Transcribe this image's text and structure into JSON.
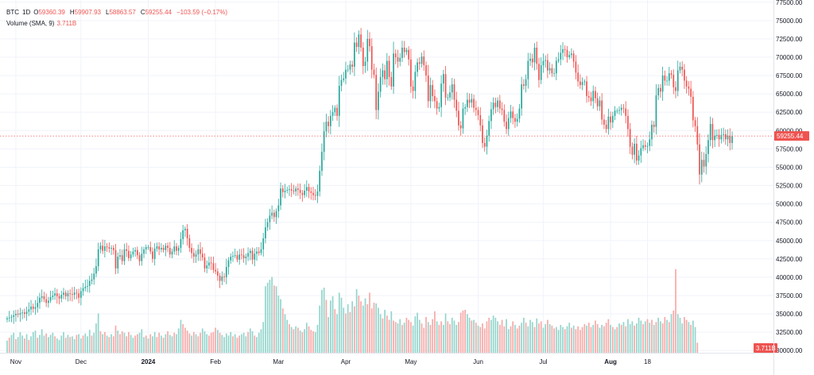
{
  "legend": {
    "symbol": "BTC",
    "interval": "1D",
    "o_label": "O",
    "open": "59360.39",
    "h_label": "H",
    "high": "59907.93",
    "l_label": "L",
    "low": "58863.57",
    "c_label": "C",
    "close": "59255.44",
    "change": "−103.59 (−0.17%)",
    "volume_label": "Volume (SMA, 9)",
    "volume_value": "3.711B"
  },
  "colors": {
    "up": "#26a69a",
    "down": "#ef5350",
    "up_volume": "#93d5cc",
    "down_volume": "#f7a9a7",
    "grid": "#f0f3fa",
    "price_line": "#ef5350",
    "axis_text": "#131722"
  },
  "chart_data": {
    "type": "candlestick",
    "title": "",
    "price_axis": {
      "ticks": [
        "77500.00",
        "75000.00",
        "72500.00",
        "70000.00",
        "67500.00",
        "65000.00",
        "62500.00",
        "60000.00",
        "57500.00",
        "55000.00",
        "52500.00",
        "50000.00",
        "47500.00",
        "45000.00",
        "42500.00",
        "40000.00",
        "37500.00",
        "35000.00",
        "32500.00",
        "30000.00"
      ],
      "range": [
        29700,
        77800
      ]
    },
    "time_axis": {
      "ticks": [
        {
          "label": "Nov",
          "date": "2023-11-01",
          "bold": false
        },
        {
          "label": "Dec",
          "date": "2023-12-01",
          "bold": false
        },
        {
          "label": "2024",
          "date": "2024-01-01",
          "bold": true
        },
        {
          "label": "Feb",
          "date": "2024-02-01",
          "bold": false
        },
        {
          "label": "Mar",
          "date": "2024-03-01",
          "bold": false
        },
        {
          "label": "Apr",
          "date": "2024-04-01",
          "bold": false
        },
        {
          "label": "May",
          "date": "2024-05-01",
          "bold": false
        },
        {
          "label": "Jun",
          "date": "2024-06-01",
          "bold": false
        },
        {
          "label": "Jul",
          "date": "2024-07-01",
          "bold": false
        },
        {
          "label": "Aug",
          "date": "2024-08-01",
          "bold": true
        },
        {
          "label": "18",
          "date": "2024-08-18",
          "bold": false
        }
      ],
      "first_date": "2023-10-28"
    },
    "last_price": {
      "value": 59255.44,
      "label": "59255.44"
    },
    "volume_last": {
      "label": "3.711B"
    },
    "close_series": [
      34400,
      34500,
      34600,
      34800,
      35000,
      34900,
      35100,
      35200,
      35000,
      35300,
      35600,
      36000,
      35700,
      35900,
      36500,
      37200,
      37400,
      37000,
      36500,
      36800,
      37300,
      37500,
      37800,
      37400,
      37100,
      37600,
      37900,
      37400,
      37800,
      37700,
      37600,
      37900,
      37800,
      37200,
      38100,
      38500,
      38700,
      38800,
      39500,
      39700,
      40500,
      41500,
      43800,
      44300,
      43600,
      44200,
      44100,
      43900,
      44000,
      43700,
      41200,
      42800,
      43000,
      42200,
      43800,
      43600,
      42600,
      43100,
      43500,
      43700,
      43000,
      42200,
      43200,
      43800,
      44100,
      44100,
      43500,
      42500,
      43900,
      44200,
      43800,
      44000,
      43700,
      44300,
      44000,
      43100,
      43500,
      44200,
      43600,
      44000,
      45200,
      46400,
      46600,
      45300,
      44000,
      43300,
      42800,
      43100,
      43800,
      43200,
      42700,
      41200,
      41600,
      42000,
      41900,
      41000,
      40800,
      40200,
      39500,
      40100,
      40000,
      41400,
      42300,
      42800,
      42900,
      43000,
      42400,
      43100,
      43000,
      42600,
      42800,
      43300,
      43600,
      42400,
      43200,
      43500,
      43300,
      43800,
      45300,
      46800,
      47500,
      48400,
      48800,
      48200,
      49000,
      49800,
      52100,
      51600,
      51800,
      51900,
      52000,
      51800,
      51700,
      52100,
      51900,
      51500,
      51200,
      51800,
      52300,
      51700,
      51500,
      51200,
      51100,
      51700,
      54500,
      57100,
      59900,
      61200,
      60600,
      62000,
      62500,
      63100,
      62000,
      66100,
      66900,
      67100,
      68300,
      68300,
      69000,
      68700,
      72000,
      71400,
      73100,
      71300,
      68800,
      69400,
      72500,
      71500,
      68300,
      67600,
      62800,
      65300,
      67300,
      68200,
      67000,
      69500,
      67300,
      66000,
      70500,
      70000,
      69400,
      69900,
      71300,
      70700,
      71000,
      69700,
      66000,
      65400,
      68000,
      69300,
      69100,
      70100,
      68900,
      67500,
      64000,
      66200,
      64700,
      64000,
      63000,
      63200,
      66400,
      67700,
      64500,
      64500,
      65200,
      66300,
      64200,
      62700,
      60700,
      60300,
      63000,
      63200,
      64200,
      63800,
      64300,
      63100,
      62800,
      62100,
      60700,
      58300,
      57800,
      59300,
      61300,
      62900,
      63800,
      63200,
      64100,
      63000,
      62800,
      61200,
      60200,
      61700,
      62600,
      61700,
      61200,
      61600,
      63000,
      66300,
      66100,
      67000,
      69500,
      69800,
      69300,
      71300,
      69100,
      66900,
      68900,
      69500,
      69600,
      68200,
      68500,
      67800,
      67800,
      69500,
      69700,
      70600,
      71100,
      71000,
      70000,
      70300,
      70500,
      69400,
      67900,
      66700,
      66200,
      66600,
      66700,
      64700,
      64500,
      64000,
      65400,
      64400,
      63300,
      64100,
      61500,
      60800,
      60200,
      61900,
      61100,
      62000,
      62700,
      62700,
      62800,
      63100,
      63000,
      62000,
      60200,
      57800,
      56700,
      58200,
      55900,
      56600,
      57600,
      58000,
      57800,
      57900,
      58800,
      60800,
      60500,
      64800,
      65800,
      65300,
      67500,
      66800,
      66800,
      67800,
      67600,
      65900,
      65400,
      68200,
      68700,
      68300,
      66800,
      66000,
      65700,
      64600,
      61400,
      60600,
      58100,
      54000,
      56000,
      55100,
      56800,
      58700,
      60900,
      58700,
      59300,
      59400,
      58800,
      59400,
      59500,
      58800,
      59300,
      58300,
      59255
    ],
    "volume_series": [
      [
        1.7,
        1
      ],
      [
        2.1,
        -1
      ],
      [
        2.5,
        1
      ],
      [
        2.8,
        1
      ],
      [
        1.9,
        -1
      ],
      [
        2.2,
        1
      ],
      [
        2.9,
        1
      ],
      [
        2.4,
        1
      ],
      [
        2.0,
        -1
      ],
      [
        2.6,
        1
      ],
      [
        1.8,
        -1
      ],
      [
        2.3,
        1
      ],
      [
        2.9,
        1
      ],
      [
        3.1,
        1
      ],
      [
        2.1,
        -1
      ],
      [
        2.5,
        1
      ],
      [
        3.3,
        1
      ],
      [
        2.4,
        1
      ],
      [
        2.7,
        -1
      ],
      [
        2.2,
        1
      ],
      [
        2.5,
        1
      ],
      [
        2.8,
        1
      ],
      [
        2.3,
        -1
      ],
      [
        2.0,
        1
      ],
      [
        1.8,
        1
      ],
      [
        2.4,
        1
      ],
      [
        2.9,
        1
      ],
      [
        2.1,
        -1
      ],
      [
        2.5,
        1
      ],
      [
        2.2,
        -1
      ],
      [
        2.3,
        1
      ],
      [
        1.9,
        1
      ],
      [
        2.5,
        -1
      ],
      [
        2.6,
        1
      ],
      [
        2.0,
        1
      ],
      [
        2.4,
        -1
      ],
      [
        2.7,
        1
      ],
      [
        2.3,
        1
      ],
      [
        3.2,
        1
      ],
      [
        2.4,
        -1
      ],
      [
        2.8,
        1
      ],
      [
        4.1,
        1
      ],
      [
        5.5,
        1
      ],
      [
        3.0,
        -1
      ],
      [
        2.6,
        1
      ],
      [
        2.9,
        -1
      ],
      [
        2.4,
        1
      ],
      [
        2.2,
        -1
      ],
      [
        2.6,
        1
      ],
      [
        2.3,
        -1
      ],
      [
        3.8,
        -1
      ],
      [
        3.1,
        1
      ],
      [
        2.6,
        -1
      ],
      [
        3.0,
        -1
      ],
      [
        2.8,
        1
      ],
      [
        2.3,
        -1
      ],
      [
        2.9,
        -1
      ],
      [
        2.5,
        1
      ],
      [
        2.1,
        1
      ],
      [
        2.4,
        -1
      ],
      [
        2.6,
        -1
      ],
      [
        2.8,
        1
      ],
      [
        3.3,
        1
      ],
      [
        2.2,
        1
      ],
      [
        2.4,
        -1
      ],
      [
        2.0,
        1
      ],
      [
        2.6,
        -1
      ],
      [
        2.3,
        1
      ],
      [
        2.9,
        1
      ],
      [
        2.2,
        -1
      ],
      [
        2.8,
        -1
      ],
      [
        2.4,
        1
      ],
      [
        2.1,
        -1
      ],
      [
        2.6,
        1
      ],
      [
        3.0,
        -1
      ],
      [
        2.5,
        1
      ],
      [
        2.3,
        1
      ],
      [
        2.8,
        -1
      ],
      [
        2.6,
        1
      ],
      [
        3.4,
        1
      ],
      [
        4.6,
        1
      ],
      [
        4.0,
        -1
      ],
      [
        3.5,
        -1
      ],
      [
        3.1,
        -1
      ],
      [
        2.7,
        -1
      ],
      [
        2.4,
        1
      ],
      [
        2.9,
        -1
      ],
      [
        2.6,
        1
      ],
      [
        2.3,
        -1
      ],
      [
        2.8,
        -1
      ],
      [
        3.4,
        1
      ],
      [
        3.0,
        1
      ],
      [
        2.6,
        1
      ],
      [
        2.4,
        -1
      ],
      [
        2.8,
        -1
      ],
      [
        2.9,
        -1
      ],
      [
        3.5,
        -1
      ],
      [
        3.2,
        1
      ],
      [
        2.8,
        -1
      ],
      [
        2.5,
        1
      ],
      [
        2.2,
        1
      ],
      [
        2.7,
        1
      ],
      [
        2.4,
        1
      ],
      [
        2.9,
        1
      ],
      [
        2.3,
        -1
      ],
      [
        2.6,
        1
      ],
      [
        2.1,
        -1
      ],
      [
        2.4,
        -1
      ],
      [
        2.6,
        1
      ],
      [
        2.8,
        1
      ],
      [
        2.3,
        1
      ],
      [
        2.9,
        -1
      ],
      [
        3.4,
        1
      ],
      [
        3.0,
        1
      ],
      [
        2.4,
        -1
      ],
      [
        2.2,
        1
      ],
      [
        2.8,
        1
      ],
      [
        3.3,
        1
      ],
      [
        4.3,
        1
      ],
      [
        9.3,
        1
      ],
      [
        9.8,
        1
      ],
      [
        10.2,
        1
      ],
      [
        10.6,
        1
      ],
      [
        9.4,
        -1
      ],
      [
        9.3,
        1
      ],
      [
        8.0,
        1
      ],
      [
        7.5,
        1
      ],
      [
        6.2,
        -1
      ],
      [
        5.4,
        1
      ],
      [
        4.6,
        1
      ],
      [
        4.0,
        -1
      ],
      [
        3.6,
        1
      ],
      [
        3.3,
        -1
      ],
      [
        3.7,
        1
      ],
      [
        3.5,
        -1
      ],
      [
        3.1,
        1
      ],
      [
        2.9,
        -1
      ],
      [
        3.3,
        1
      ],
      [
        4.2,
        1
      ],
      [
        3.7,
        -1
      ],
      [
        3.2,
        -1
      ],
      [
        3.0,
        -1
      ],
      [
        2.9,
        1
      ],
      [
        3.9,
        1
      ],
      [
        6.6,
        1
      ],
      [
        8.8,
        1
      ],
      [
        9.1,
        1
      ],
      [
        7.4,
        -1
      ],
      [
        5.0,
        1
      ],
      [
        7.3,
        1
      ],
      [
        7.9,
        1
      ],
      [
        6.1,
        -1
      ],
      [
        5.4,
        1
      ],
      [
        8.4,
        1
      ],
      [
        7.7,
        1
      ],
      [
        6.3,
        1
      ],
      [
        5.5,
        -1
      ],
      [
        6.8,
        1
      ],
      [
        5.7,
        -1
      ],
      [
        7.2,
        1
      ],
      [
        6.5,
        -1
      ],
      [
        8.9,
        1
      ],
      [
        8.0,
        -1
      ],
      [
        7.2,
        -1
      ],
      [
        6.6,
        1
      ],
      [
        7.6,
        1
      ],
      [
        6.8,
        -1
      ],
      [
        8.4,
        -1
      ],
      [
        6.2,
        -1
      ],
      [
        7.0,
        -1
      ],
      [
        6.9,
        1
      ],
      [
        6.3,
        1
      ],
      [
        5.4,
        1
      ],
      [
        4.8,
        -1
      ],
      [
        6.0,
        1
      ],
      [
        5.2,
        -1
      ],
      [
        4.6,
        -1
      ],
      [
        5.8,
        1
      ],
      [
        4.5,
        -1
      ],
      [
        4.3,
        -1
      ],
      [
        4.1,
        1
      ],
      [
        4.7,
        1
      ],
      [
        3.9,
        -1
      ],
      [
        4.2,
        1
      ],
      [
        4.9,
        -1
      ],
      [
        4.6,
        -1
      ],
      [
        4.3,
        -1
      ],
      [
        3.8,
        1
      ],
      [
        5.1,
        1
      ],
      [
        5.6,
        1
      ],
      [
        4.6,
        1
      ],
      [
        4.1,
        -1
      ],
      [
        3.5,
        -1
      ],
      [
        5.0,
        -1
      ],
      [
        4.3,
        1
      ],
      [
        3.9,
        -1
      ],
      [
        4.7,
        -1
      ],
      [
        5.8,
        -1
      ],
      [
        4.4,
        1
      ],
      [
        3.9,
        -1
      ],
      [
        4.4,
        -1
      ],
      [
        3.9,
        1
      ],
      [
        5.5,
        1
      ],
      [
        4.4,
        -1
      ],
      [
        4.0,
        -1
      ],
      [
        4.9,
        1
      ],
      [
        4.5,
        1
      ],
      [
        3.9,
        1
      ],
      [
        4.3,
        -1
      ],
      [
        5.6,
        -1
      ],
      [
        5.9,
        -1
      ],
      [
        6.0,
        -1
      ],
      [
        5.4,
        1
      ],
      [
        4.9,
        1
      ],
      [
        4.5,
        -1
      ],
      [
        4.6,
        1
      ],
      [
        4.2,
        -1
      ],
      [
        3.8,
        1
      ],
      [
        3.6,
        -1
      ],
      [
        4.1,
        -1
      ],
      [
        3.4,
        -1
      ],
      [
        4.4,
        -1
      ],
      [
        4.9,
        -1
      ],
      [
        4.6,
        1
      ],
      [
        5.2,
        1
      ],
      [
        4.9,
        1
      ],
      [
        4.4,
        1
      ],
      [
        3.9,
        -1
      ],
      [
        4.6,
        -1
      ],
      [
        3.7,
        -1
      ],
      [
        4.7,
        1
      ],
      [
        3.3,
        1
      ],
      [
        3.7,
        -1
      ],
      [
        4.4,
        -1
      ],
      [
        3.9,
        1
      ],
      [
        3.4,
        -1
      ],
      [
        3.8,
        -1
      ],
      [
        4.2,
        1
      ],
      [
        4.9,
        1
      ],
      [
        4.2,
        -1
      ],
      [
        3.7,
        1
      ],
      [
        4.6,
        1
      ],
      [
        4.3,
        1
      ],
      [
        3.6,
        -1
      ],
      [
        4.8,
        1
      ],
      [
        4.1,
        -1
      ],
      [
        4.4,
        -1
      ],
      [
        3.5,
        1
      ],
      [
        4.0,
        1
      ],
      [
        4.6,
        -1
      ],
      [
        4.0,
        1
      ],
      [
        3.8,
        -1
      ],
      [
        3.4,
        -1
      ],
      [
        3.6,
        1
      ],
      [
        3.2,
        1
      ],
      [
        3.9,
        1
      ],
      [
        3.6,
        1
      ],
      [
        3.3,
        -1
      ],
      [
        3.7,
        1
      ],
      [
        4.2,
        1
      ],
      [
        3.5,
        -1
      ],
      [
        3.8,
        1
      ],
      [
        3.3,
        -1
      ],
      [
        3.7,
        -1
      ],
      [
        3.2,
        -1
      ],
      [
        3.6,
        -1
      ],
      [
        4.0,
        -1
      ],
      [
        3.8,
        1
      ],
      [
        4.2,
        -1
      ],
      [
        3.6,
        -1
      ],
      [
        3.9,
        1
      ],
      [
        4.5,
        -1
      ],
      [
        4.0,
        -1
      ],
      [
        3.5,
        1
      ],
      [
        3.9,
        1
      ],
      [
        3.7,
        -1
      ],
      [
        4.2,
        -1
      ],
      [
        4.7,
        -1
      ],
      [
        3.9,
        1
      ],
      [
        3.6,
        -1
      ],
      [
        3.3,
        1
      ],
      [
        3.6,
        -1
      ],
      [
        4.1,
        1
      ],
      [
        3.9,
        -1
      ],
      [
        4.3,
        1
      ],
      [
        3.7,
        -1
      ],
      [
        4.7,
        1
      ],
      [
        4.0,
        1
      ],
      [
        4.4,
        1
      ],
      [
        3.8,
        -1
      ],
      [
        4.1,
        1
      ],
      [
        4.9,
        1
      ],
      [
        4.5,
        1
      ],
      [
        4.0,
        -1
      ],
      [
        4.4,
        1
      ],
      [
        4.7,
        -1
      ],
      [
        4.2,
        1
      ],
      [
        4.6,
        -1
      ],
      [
        3.9,
        1
      ],
      [
        4.3,
        -1
      ],
      [
        4.9,
        1
      ],
      [
        4.4,
        1
      ],
      [
        4.1,
        -1
      ],
      [
        5.0,
        -1
      ],
      [
        4.6,
        1
      ],
      [
        4.3,
        -1
      ],
      [
        5.4,
        1
      ],
      [
        5.9,
        -1
      ],
      [
        11.7,
        -1
      ],
      [
        5.4,
        1
      ],
      [
        4.9,
        1
      ],
      [
        4.1,
        1
      ],
      [
        5.0,
        -1
      ],
      [
        4.6,
        -1
      ],
      [
        4.3,
        1
      ],
      [
        3.9,
        -1
      ],
      [
        4.5,
        1
      ],
      [
        3.6,
        1
      ],
      [
        1.4,
        -1
      ]
    ]
  }
}
